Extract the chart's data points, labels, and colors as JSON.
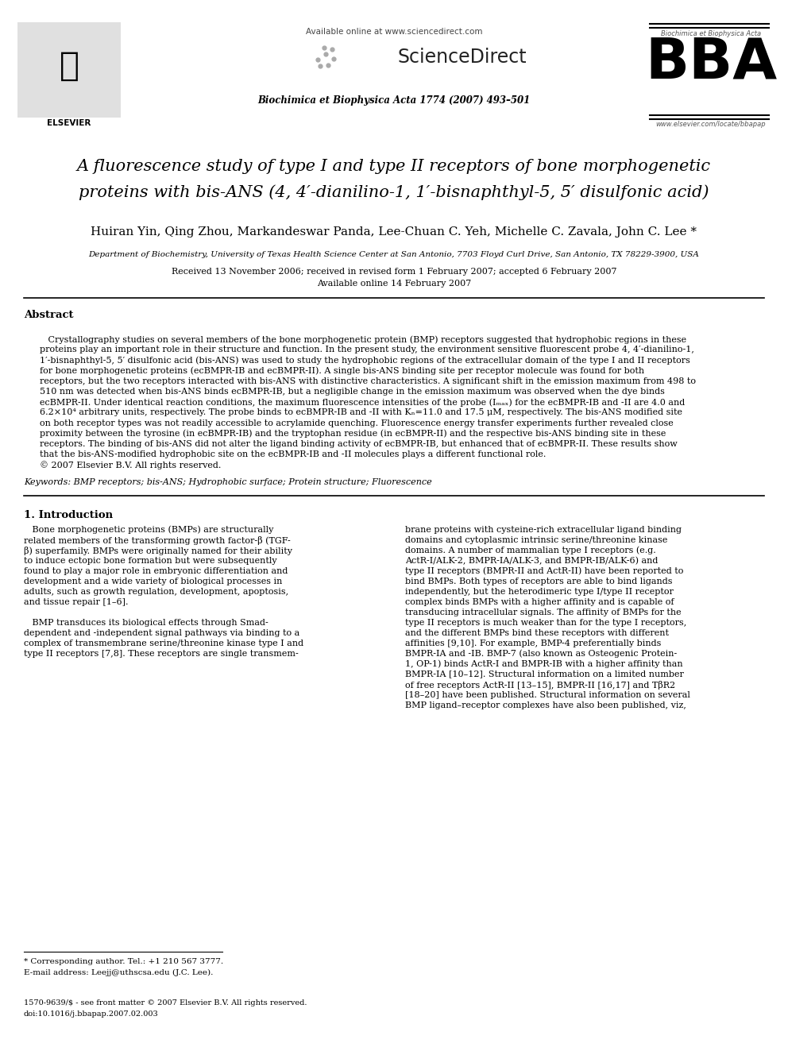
{
  "header_available": "Available online at www.sciencedirect.com",
  "header_journal": "Biochimica et Biophysica Acta 1774 (2007) 493–501",
  "header_website": "www.elsevier.com/locate/bbapap",
  "header_bba_label": "Biochimica et Biophysica Acta",
  "title_line1": "A fluorescence study of type I and type II receptors of bone morphogenetic",
  "title_line2": "proteins with bis-ANS (4, 4′-dianilino-1, 1′-bisnaphthyl-5, 5′ disulfonic acid)",
  "authors": "Huiran Yin, Qing Zhou, Markandeswar Panda, Lee-Chuan C. Yeh, Michelle C. Zavala, John C. Lee *",
  "affiliation": "Department of Biochemistry, University of Texas Health Science Center at San Antonio, 7703 Floyd Curl Drive, San Antonio, TX 78229-3900, USA",
  "received": "Received 13 November 2006; received in revised form 1 February 2007; accepted 6 February 2007",
  "available_online": "Available online 14 February 2007",
  "abstract_title": "Abstract",
  "abstract_lines": [
    "   Crystallography studies on several members of the bone morphogenetic protein (BMP) receptors suggested that hydrophobic regions in these",
    "proteins play an important role in their structure and function. In the present study, the environment sensitive fluorescent probe 4, 4′-dianilino-1,",
    "1′-bisnaphthyl-5, 5′ disulfonic acid (bis-ANS) was used to study the hydrophobic regions of the extracellular domain of the type I and II receptors",
    "for bone morphogenetic proteins (ecBMPR-IB and ecBMPR-II). A single bis-ANS binding site per receptor molecule was found for both",
    "receptors, but the two receptors interacted with bis-ANS with distinctive characteristics. A significant shift in the emission maximum from 498 to",
    "510 nm was detected when bis-ANS binds ecBMPR-IB, but a negligible change in the emission maximum was observed when the dye binds",
    "ecBMPR-II. Under identical reaction conditions, the maximum fluorescence intensities of the probe (Iₘₐₓ) for the ecBMPR-IB and -II are 4.0 and",
    "6.2×10⁴ arbitrary units, respectively. The probe binds to ecBMPR-IB and -II with Kₙ=11.0 and 17.5 μM, respectively. The bis-ANS modified site",
    "on both receptor types was not readily accessible to acrylamide quenching. Fluorescence energy transfer experiments further revealed close",
    "proximity between the tyrosine (in ecBMPR-IB) and the tryptophan residue (in ecBMPR-II) and the respective bis-ANS binding site in these",
    "receptors. The binding of bis-ANS did not alter the ligand binding activity of ecBMPR-IB, but enhanced that of ecBMPR-II. These results show",
    "that the bis-ANS-modified hydrophobic site on the ecBMPR-IB and -II molecules plays a different functional role.",
    "© 2007 Elsevier B.V. All rights reserved."
  ],
  "keywords": "Keywords: BMP receptors; bis-ANS; Hydrophobic surface; Protein structure; Fluorescence",
  "section1_title": "1. Introduction",
  "col1_lines": [
    "   Bone morphogenetic proteins (BMPs) are structurally",
    "related members of the transforming growth factor-β (TGF-",
    "β) superfamily. BMPs were originally named for their ability",
    "to induce ectopic bone formation but were subsequently",
    "found to play a major role in embryonic differentiation and",
    "development and a wide variety of biological processes in",
    "adults, such as growth regulation, development, apoptosis,",
    "and tissue repair [1–6].",
    "",
    "   BMP transduces its biological effects through Smad-",
    "dependent and -independent signal pathways via binding to a",
    "complex of transmembrane serine/threonine kinase type I and",
    "type II receptors [7,8]. These receptors are single transmem-"
  ],
  "col2_lines": [
    "brane proteins with cysteine-rich extracellular ligand binding",
    "domains and cytoplasmic intrinsic serine/threonine kinase",
    "domains. A number of mammalian type I receptors (e.g.",
    "ActR-I/ALK-2, BMPR-IA/ALK-3, and BMPR-IB/ALK-6) and",
    "type II receptors (BMPR-II and ActR-II) have been reported to",
    "bind BMPs. Both types of receptors are able to bind ligands",
    "independently, but the heterodimeric type I/type II receptor",
    "complex binds BMPs with a higher affinity and is capable of",
    "transducing intracellular signals. The affinity of BMPs for the",
    "type II receptors is much weaker than for the type I receptors,",
    "and the different BMPs bind these receptors with different",
    "affinities [9,10]. For example, BMP-4 preferentially binds",
    "BMPR-IA and -IB. BMP-7 (also known as Osteogenic Protein-",
    "1, OP-1) binds ActR-I and BMPR-IB with a higher affinity than",
    "BMPR-IA [10–12]. Structural information on a limited number",
    "of free receptors ActR-II [13–15], BMPR-II [16,17] and TβR2",
    "[18–20] have been published. Structural information on several",
    "BMP ligand–receptor complexes have also been published, viz,"
  ],
  "footnote_line": "* Corresponding author. Tel.: +1 210 567 3777.",
  "footnote_email": "E-mail address: Leejj@uthscsa.edu (J.C. Lee).",
  "footnote_issn": "1570-9639/$ - see front matter © 2007 Elsevier B.V. All rights reserved.",
  "footnote_doi": "doi:10.1016/j.bbapap.2007.02.003",
  "bg_color": "#ffffff"
}
